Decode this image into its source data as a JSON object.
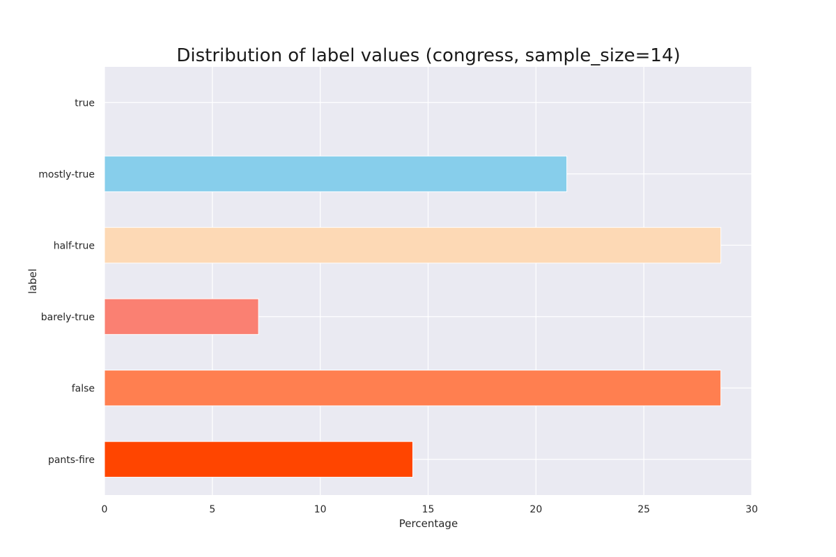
{
  "chart_data": {
    "type": "bar",
    "orientation": "horizontal",
    "title": "Distribution of label values (congress, sample_size=14)",
    "xlabel": "Percentage",
    "ylabel": "label",
    "xlim": [
      0,
      30
    ],
    "xticks": [
      0,
      5,
      10,
      15,
      20,
      25,
      30
    ],
    "grid": true,
    "legend": "none",
    "background_color": "#eaeaf2",
    "grid_color": "#ffffff",
    "categories": [
      "true",
      "mostly-true",
      "half-true",
      "barely-true",
      "false",
      "pants-fire"
    ],
    "values": [
      0,
      21.43,
      28.57,
      7.14,
      28.57,
      14.29
    ],
    "colors": [
      "#87ceeb",
      "#87ceeb",
      "#fdd9b5",
      "#fa8072",
      "#ff7f50",
      "#ff4500"
    ]
  }
}
